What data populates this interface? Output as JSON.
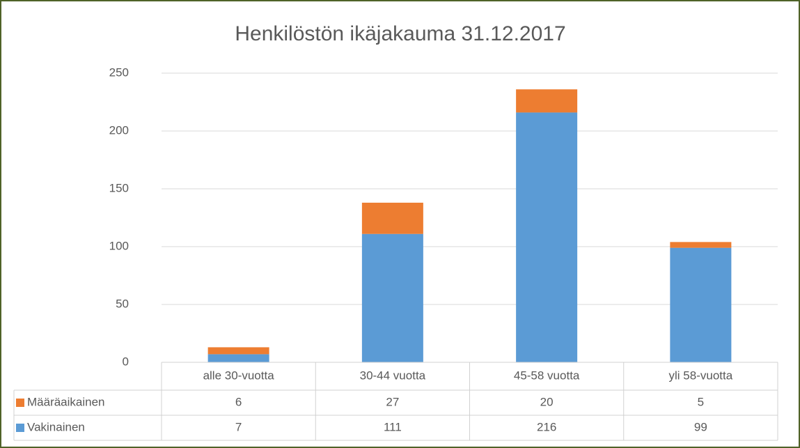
{
  "chart_data": {
    "type": "bar",
    "stacked": true,
    "title": "Henkilöstön ikäjakauma 31.12.2017",
    "categories": [
      "alle 30-vuotta",
      "30-44 vuotta",
      "45-58 vuotta",
      "yli 58-vuotta"
    ],
    "series": [
      {
        "name": "Määräaikainen",
        "color": "#ed7d31",
        "values": [
          6,
          27,
          20,
          5
        ]
      },
      {
        "name": "Vakinainen",
        "color": "#5b9bd5",
        "values": [
          7,
          111,
          216,
          99
        ]
      }
    ],
    "ylim": [
      0,
      250
    ],
    "yticks": [
      0,
      50,
      100,
      150,
      200,
      250
    ],
    "grid": true,
    "data_table": true
  }
}
